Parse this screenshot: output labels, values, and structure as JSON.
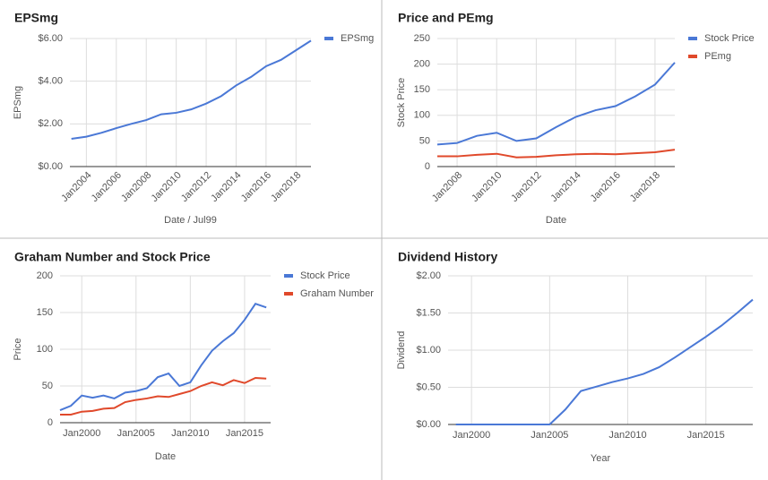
{
  "chart_data": [
    {
      "type": "line",
      "title": "EPSmg",
      "x_label": "Date / Jul99",
      "y_label": "EPSmg",
      "x": [
        2003,
        2004,
        2005,
        2006,
        2007,
        2008,
        2009,
        2010,
        2011,
        2012,
        2013,
        2014,
        2015,
        2016,
        2017,
        2018,
        2019
      ],
      "series": [
        {
          "name": "EPSmg",
          "color": "#4a78d6",
          "values": [
            1.3,
            1.4,
            1.58,
            1.8,
            2.0,
            2.18,
            2.45,
            2.52,
            2.68,
            2.95,
            3.3,
            3.8,
            4.2,
            4.7,
            5.0,
            5.45,
            5.9
          ]
        }
      ],
      "xlim": [
        2002.9,
        2019
      ],
      "ylim": [
        0,
        6
      ],
      "xticks": [
        {
          "value": 2004,
          "label": "Jan2004"
        },
        {
          "value": 2006,
          "label": "Jan2006"
        },
        {
          "value": 2008,
          "label": "Jan2008"
        },
        {
          "value": 2010,
          "label": "Jan2010"
        },
        {
          "value": 2012,
          "label": "Jan2012"
        },
        {
          "value": 2014,
          "label": "Jan2014"
        },
        {
          "value": 2016,
          "label": "Jan2016"
        },
        {
          "value": 2018,
          "label": "Jan2018"
        }
      ],
      "yticks": [
        {
          "value": 0,
          "label": "$0.00"
        },
        {
          "value": 2,
          "label": "$2.00"
        },
        {
          "value": 4,
          "label": "$4.00"
        },
        {
          "value": 6,
          "label": "$6.00"
        }
      ],
      "grid": true,
      "legend": "right"
    },
    {
      "type": "line",
      "title": "Price and PEmg",
      "x_label": "Date",
      "y_label": "Stock Price",
      "x": [
        2007,
        2008,
        2009,
        2010,
        2011,
        2012,
        2013,
        2014,
        2015,
        2016,
        2017,
        2018,
        2019
      ],
      "series": [
        {
          "name": "Stock Price",
          "color": "#4a78d6",
          "values": [
            43,
            46,
            60,
            66,
            50,
            55,
            77,
            97,
            110,
            118,
            137,
            160,
            203
          ]
        },
        {
          "name": "PEmg",
          "color": "#e0492b",
          "values": [
            20,
            20,
            23,
            25,
            18,
            19,
            22,
            24,
            25,
            24,
            26,
            28,
            33
          ]
        }
      ],
      "xlim": [
        2007,
        2019
      ],
      "ylim": [
        0,
        250
      ],
      "xticks": [
        {
          "value": 2008,
          "label": "Jan2008"
        },
        {
          "value": 2010,
          "label": "Jan2010"
        },
        {
          "value": 2012,
          "label": "Jan2012"
        },
        {
          "value": 2014,
          "label": "Jan2014"
        },
        {
          "value": 2016,
          "label": "Jan2016"
        },
        {
          "value": 2018,
          "label": "Jan2018"
        }
      ],
      "yticks": [
        0,
        50,
        100,
        150,
        200,
        250
      ],
      "grid": true,
      "legend": "right"
    },
    {
      "type": "line",
      "title": "Graham Number and Stock Price",
      "x_label": "Date",
      "y_label": "Price",
      "x": [
        1998,
        1999,
        2000,
        2001,
        2002,
        2003,
        2004,
        2005,
        2006,
        2007,
        2008,
        2009,
        2010,
        2011,
        2012,
        2013,
        2014,
        2015,
        2016,
        2017
      ],
      "series": [
        {
          "name": "Stock Price",
          "color": "#4a78d6",
          "values": [
            17,
            23,
            37,
            34,
            37,
            33,
            41,
            43,
            47,
            62,
            67,
            50,
            55,
            78,
            98,
            111,
            122,
            140,
            162,
            157
          ]
        },
        {
          "name": "Graham Number",
          "color": "#e0492b",
          "values": [
            11,
            11,
            15,
            16,
            19,
            20,
            28,
            31,
            33,
            36,
            35,
            39,
            43,
            50,
            55,
            51,
            58,
            54,
            61,
            60
          ]
        }
      ],
      "xlim": [
        1998,
        2017.4
      ],
      "ylim": [
        0,
        200
      ],
      "xticks": [
        {
          "value": 2000,
          "label": "Jan2000"
        },
        {
          "value": 2005,
          "label": "Jan2005"
        },
        {
          "value": 2010,
          "label": "Jan2010"
        },
        {
          "value": 2015,
          "label": "Jan2015"
        }
      ],
      "yticks": [
        0,
        50,
        100,
        150,
        200
      ],
      "grid": true,
      "legend": "right"
    },
    {
      "type": "line",
      "title": "Dividend History",
      "x_label": "Year",
      "y_label": "Dividend",
      "x": [
        1999,
        2000,
        2001,
        2002,
        2003,
        2004,
        2005,
        2006,
        2007,
        2008,
        2009,
        2010,
        2011,
        2012,
        2013,
        2014,
        2015,
        2016,
        2017,
        2018
      ],
      "values": [
        0,
        0,
        0,
        0,
        0,
        0,
        0,
        0.2,
        0.45,
        0.51,
        0.57,
        0.62,
        0.68,
        0.77,
        0.9,
        1.04,
        1.18,
        1.33,
        1.5,
        1.68
      ],
      "color": "#4a78d6",
      "xlim": [
        1998.5,
        2018
      ],
      "ylim": [
        0,
        2
      ],
      "xticks": [
        {
          "value": 2000,
          "label": "Jan2000"
        },
        {
          "value": 2005,
          "label": "Jan2005"
        },
        {
          "value": 2010,
          "label": "Jan2010"
        },
        {
          "value": 2015,
          "label": "Jan2015"
        }
      ],
      "yticks": [
        {
          "value": 0,
          "label": "$0.00"
        },
        {
          "value": 0.5,
          "label": "$0.50"
        },
        {
          "value": 1,
          "label": "$1.00"
        },
        {
          "value": 1.5,
          "label": "$1.50"
        },
        {
          "value": 2,
          "label": "$2.00"
        }
      ],
      "grid": true
    }
  ]
}
